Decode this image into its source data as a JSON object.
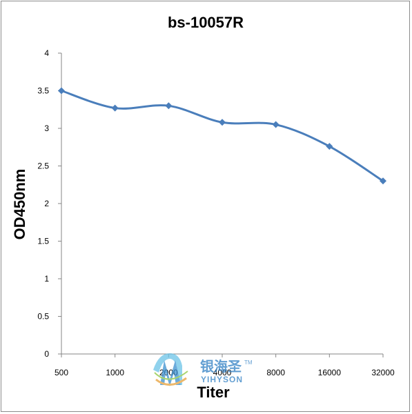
{
  "chart_data": {
    "type": "line",
    "title": "bs-10057R",
    "xlabel": "Titer",
    "ylabel": "OD450nm",
    "categories": [
      "500",
      "1000",
      "2000",
      "4000",
      "8000",
      "16000",
      "32000"
    ],
    "series": [
      {
        "values": [
          3.5,
          3.27,
          3.3,
          3.08,
          3.05,
          2.76,
          2.3
        ],
        "color": "#4a7ebb"
      }
    ],
    "ylim": [
      0,
      4
    ],
    "yticks": [
      "0",
      "0.5",
      "1",
      "1.5",
      "2",
      "2.5",
      "3",
      "3.5",
      "4"
    ],
    "grid": false,
    "legend": "none"
  },
  "watermark": {
    "cn": "银海圣",
    "en": "YIHYSON",
    "tm": "TM"
  }
}
